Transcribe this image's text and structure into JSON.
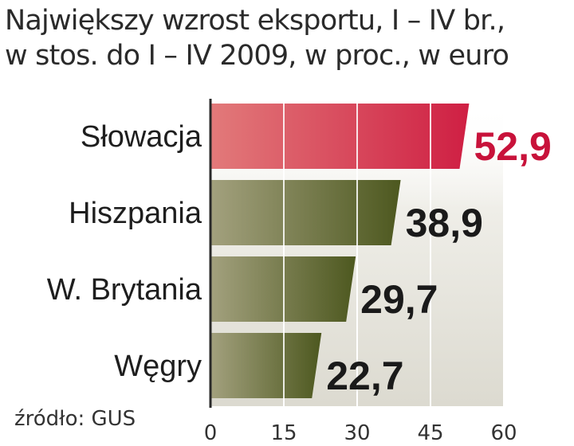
{
  "title_lines": [
    "Największy wzrost eksportu, I – IV br.,",
    "w stos. do I – IV 2009, w proc., w euro"
  ],
  "source": "źródło: GUS",
  "colors": {
    "highlight_value": "#c8123a",
    "value": "#1a1a1a",
    "highlight_bar": "#d8314a",
    "bar": "#596228",
    "plot_background": "#e6e4da"
  },
  "chart_data": {
    "type": "bar",
    "orientation": "horizontal",
    "categories": [
      "Słowacja",
      "Hiszpania",
      "W. Brytania",
      "Węgry"
    ],
    "values": [
      52.9,
      38.9,
      29.7,
      22.7
    ],
    "value_labels": [
      "52,9",
      "38,9",
      "29,7",
      "22,7"
    ],
    "highlight_index": 0,
    "xlim": [
      0,
      60
    ],
    "xticks": [
      "0",
      "15",
      "30",
      "45",
      "60"
    ],
    "grid": true
  }
}
